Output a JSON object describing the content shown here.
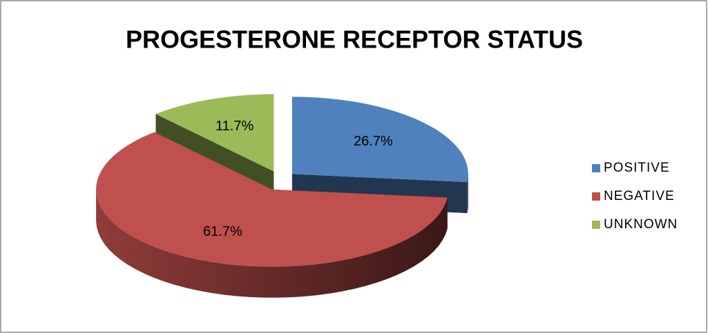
{
  "chart_data": {
    "type": "pie",
    "title": "PROGESTERONE RECEPTOR STATUS",
    "categories": [
      "POSITIVE",
      "NEGATIVE",
      "UNKNOWN"
    ],
    "values": [
      26.7,
      61.7,
      11.7
    ],
    "value_labels": [
      "26.7%",
      "61.7%",
      "11.7%"
    ],
    "colors": [
      "#4f81bd",
      "#c0504d",
      "#9bbb59"
    ],
    "legend": "right",
    "exploded": true,
    "3d": true
  }
}
